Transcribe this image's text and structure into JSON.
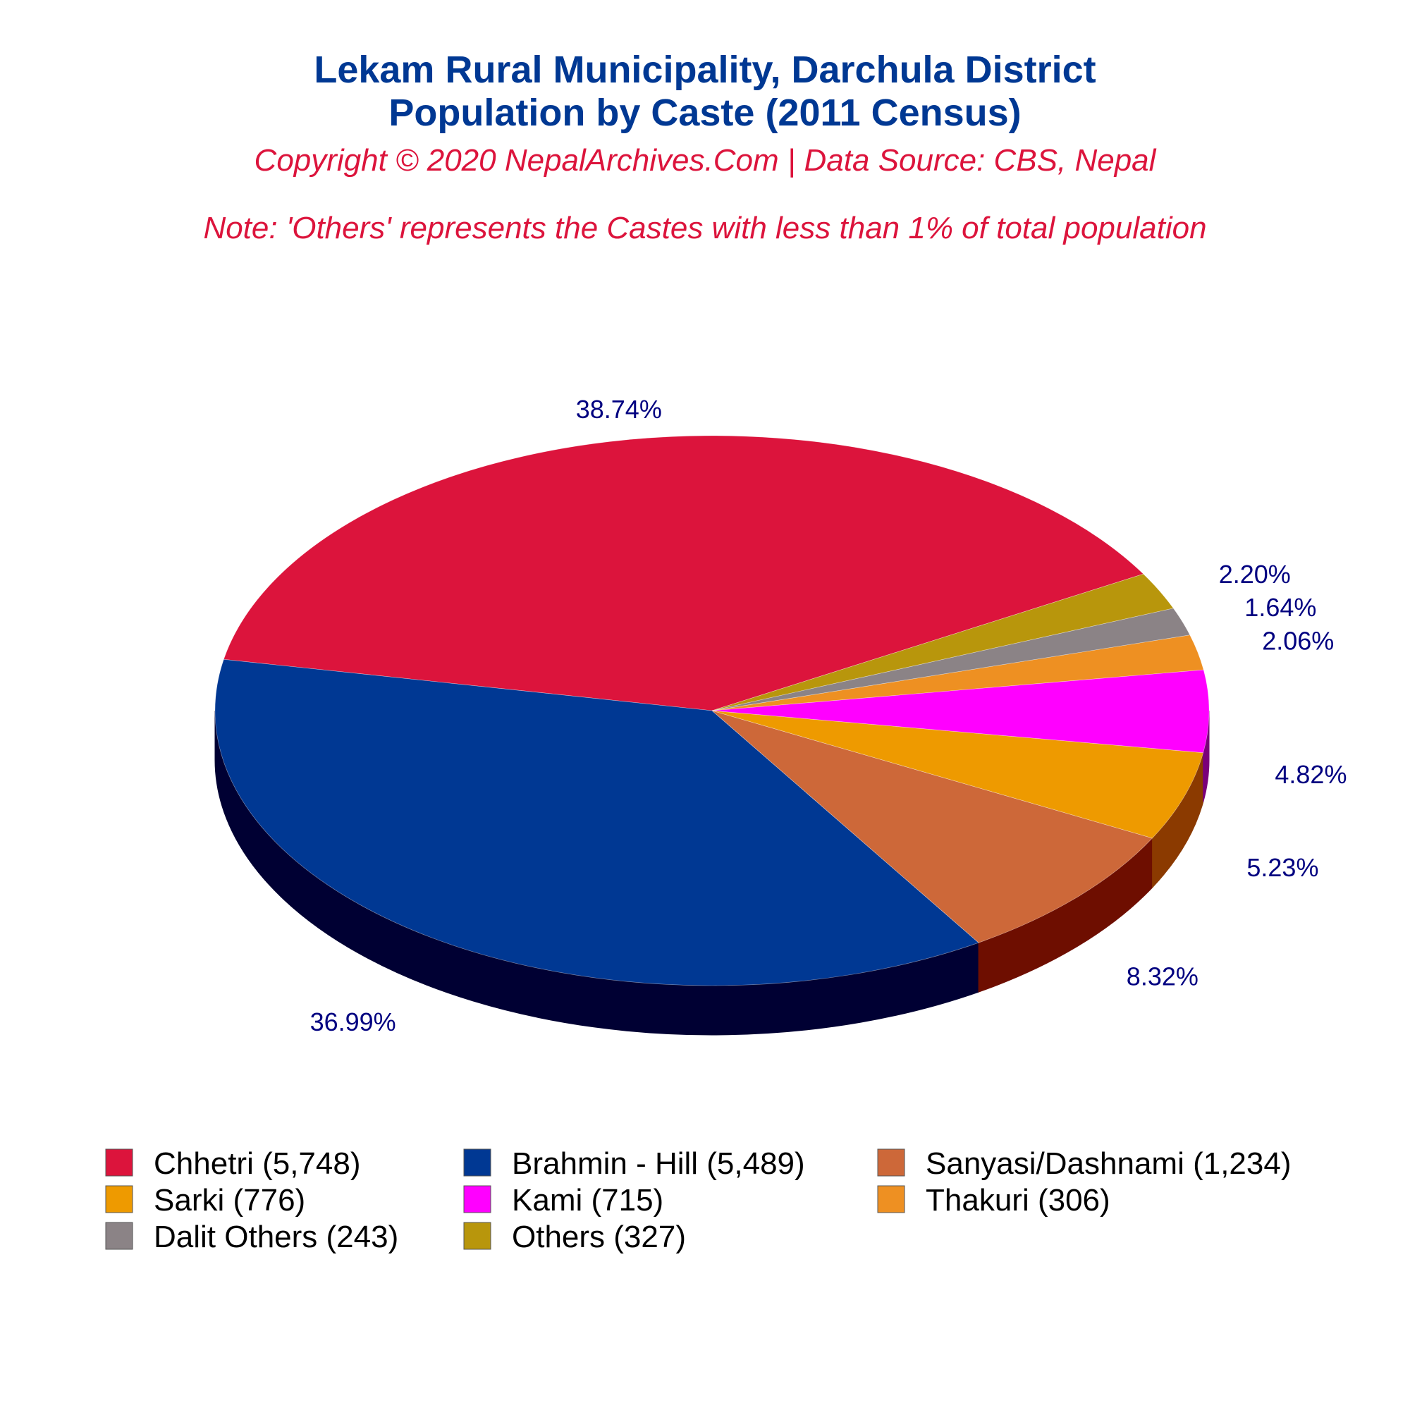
{
  "colors": {
    "title": "#003893",
    "subtitle": "#DC143C",
    "label": "#000080"
  },
  "chart_data": {
    "type": "pie",
    "title": "Lekam Rural Municipality, Darchula District",
    "title_line2": "Population by Caste (2011 Census)",
    "copyright": "Copyright © 2020 NepalArchives.Com | Data Source: CBS, Nepal",
    "note": "Note: 'Others' represents the Castes with less than 1% of total population",
    "style": "3d",
    "legend_position": "bottom",
    "slices": [
      {
        "label": "Chhetri (5,748)",
        "value": 5748,
        "percent": "38.74%",
        "color": "#DC143C",
        "side": "#6E0A1E"
      },
      {
        "label": "Brahmin - Hill (5,489)",
        "value": 5489,
        "percent": "36.99%",
        "color": "#003893",
        "side": "#000033"
      },
      {
        "label": "Sanyasi/Dashnami (1,234)",
        "value": 1234,
        "percent": "8.32%",
        "color": "#CD6839",
        "side": "#6E0E00"
      },
      {
        "label": "Sarki (776)",
        "value": 776,
        "percent": "5.23%",
        "color": "#EE9A00",
        "side": "#8B3A00"
      },
      {
        "label": "Kami (715)",
        "value": 715,
        "percent": "4.82%",
        "color": "#FF00FF",
        "side": "#7A007A"
      },
      {
        "label": "Thakuri (306)",
        "value": 306,
        "percent": "2.06%",
        "color": "#EE9022",
        "side": "#7A4A10"
      },
      {
        "label": "Dalit Others (243)",
        "value": 243,
        "percent": "1.64%",
        "color": "#8B8386",
        "side": "#454142"
      },
      {
        "label": "Others (327)",
        "value": 327,
        "percent": "2.20%",
        "color": "#B8960C",
        "side": "#5C4B06"
      }
    ]
  }
}
